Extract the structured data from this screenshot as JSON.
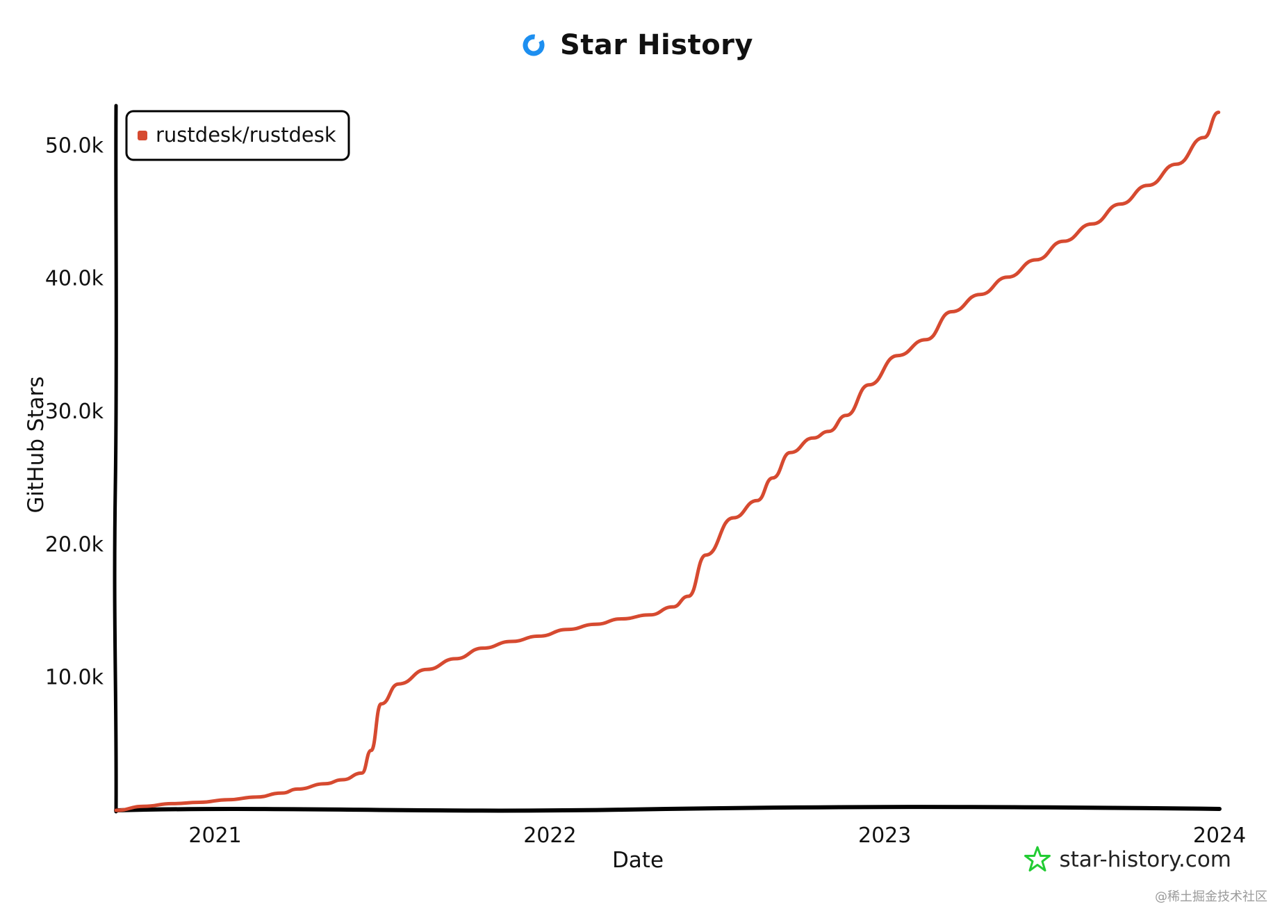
{
  "header": {
    "title": "Star History",
    "logo_icon": "star-history-ring-icon",
    "logo_color": "#1d8ff0"
  },
  "legend": {
    "items": [
      {
        "label": "rustdesk/rustdesk",
        "color": "#d64a30"
      }
    ]
  },
  "footer": {
    "text": "star-history.com",
    "icon": "star-outline-icon",
    "icon_color": "#22cc33"
  },
  "watermark": "@稀土掘金技术社区",
  "chart_data": {
    "type": "line",
    "xlabel": "Date",
    "ylabel": "GitHub Stars",
    "x_ticks": [
      "2021",
      "2022",
      "2023",
      "2024"
    ],
    "y_ticks": [
      "10.0k",
      "20.0k",
      "30.0k",
      "40.0k",
      "50.0k"
    ],
    "y_tick_values": [
      10000,
      20000,
      30000,
      40000,
      50000
    ],
    "xlim": [
      "2020-09-15",
      "2024-01-01"
    ],
    "ylim": [
      0,
      53000
    ],
    "grid": false,
    "legend_position": "top-left",
    "series": [
      {
        "name": "rustdesk/rustdesk",
        "color": "#d64a30",
        "x": [
          "2020-09-15",
          "2020-10-15",
          "2020-11-15",
          "2020-12-15",
          "2021-01-15",
          "2021-02-15",
          "2021-03-15",
          "2021-04-01",
          "2021-05-01",
          "2021-05-20",
          "2021-06-10",
          "2021-06-20",
          "2021-07-01",
          "2021-07-20",
          "2021-08-20",
          "2021-09-20",
          "2021-10-20",
          "2021-11-20",
          "2021-12-20",
          "2022-01-20",
          "2022-02-20",
          "2022-03-20",
          "2022-04-20",
          "2022-05-15",
          "2022-06-01",
          "2022-06-20",
          "2022-07-20",
          "2022-08-15",
          "2022-09-01",
          "2022-09-20",
          "2022-10-15",
          "2022-11-01",
          "2022-11-20",
          "2022-12-15",
          "2023-01-15",
          "2023-02-15",
          "2023-03-15",
          "2023-04-15",
          "2023-05-15",
          "2023-06-15",
          "2023-07-15",
          "2023-08-15",
          "2023-09-15",
          "2023-10-15",
          "2023-11-15",
          "2023-12-15",
          "2023-12-31"
        ],
        "values": [
          0,
          300,
          500,
          600,
          800,
          1000,
          1300,
          1600,
          2000,
          2300,
          2800,
          4500,
          8000,
          9500,
          10600,
          11400,
          12200,
          12700,
          13100,
          13600,
          14000,
          14400,
          14700,
          15300,
          16100,
          19200,
          22000,
          23300,
          25000,
          26900,
          28000,
          28500,
          29700,
          32000,
          34200,
          35400,
          37500,
          38800,
          40100,
          41400,
          42800,
          44100,
          45600,
          47000,
          48600,
          50600,
          52500
        ]
      }
    ]
  }
}
